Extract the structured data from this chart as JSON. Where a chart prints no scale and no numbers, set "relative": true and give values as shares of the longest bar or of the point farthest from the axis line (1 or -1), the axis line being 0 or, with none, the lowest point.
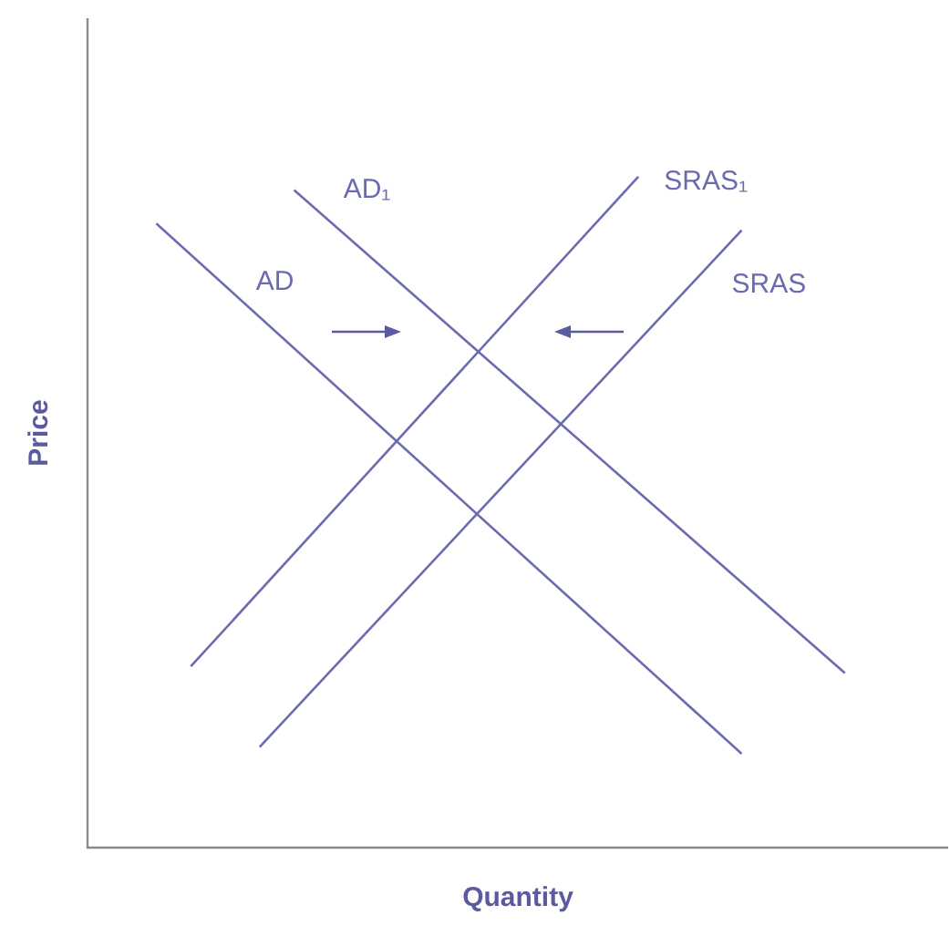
{
  "chart_data": {
    "type": "line",
    "relative": true,
    "xlabel": "Quantity",
    "ylabel": "Price",
    "legend": false,
    "marker": "none",
    "line_style": "solid",
    "categories": [
      null,
      null,
      null,
      null,
      null,
      null,
      null,
      null,
      null,
      null,
      null,
      null,
      null,
      null,
      null,
      null,
      null,
      null,
      null,
      null,
      null,
      null,
      null,
      null,
      null,
      null
    ],
    "series": [
      {
        "name": "AD",
        "color": "#6b6bb0",
        "values": [
          null,
          null,
          0.93,
          null,
          null,
          null,
          null,
          null,
          null,
          null,
          null,
          null,
          null,
          null,
          null,
          null,
          null,
          null,
          null,
          0.14,
          null,
          null,
          null,
          null,
          null,
          null
        ]
      },
      {
        "name": "AD₁",
        "color": "#6b6bb0",
        "values": [
          null,
          null,
          null,
          null,
          null,
          null,
          0.98,
          null,
          null,
          null,
          null,
          null,
          null,
          null,
          null,
          null,
          null,
          null,
          null,
          null,
          null,
          null,
          0.26,
          null,
          null,
          null
        ]
      },
      {
        "name": "SRAS₁",
        "color": "#6b6bb0",
        "values": [
          null,
          null,
          null,
          0.27,
          null,
          null,
          null,
          null,
          null,
          null,
          null,
          null,
          null,
          null,
          null,
          null,
          1,
          null,
          null,
          null,
          null,
          null,
          null,
          null,
          null,
          null
        ]
      },
      {
        "name": "SRAS",
        "color": "#6b6bb0",
        "values": [
          null,
          null,
          null,
          null,
          null,
          0.15,
          null,
          null,
          null,
          null,
          null,
          null,
          null,
          null,
          null,
          null,
          null,
          null,
          null,
          0.92,
          null,
          null,
          null,
          null,
          null,
          null
        ]
      }
    ]
  }
}
